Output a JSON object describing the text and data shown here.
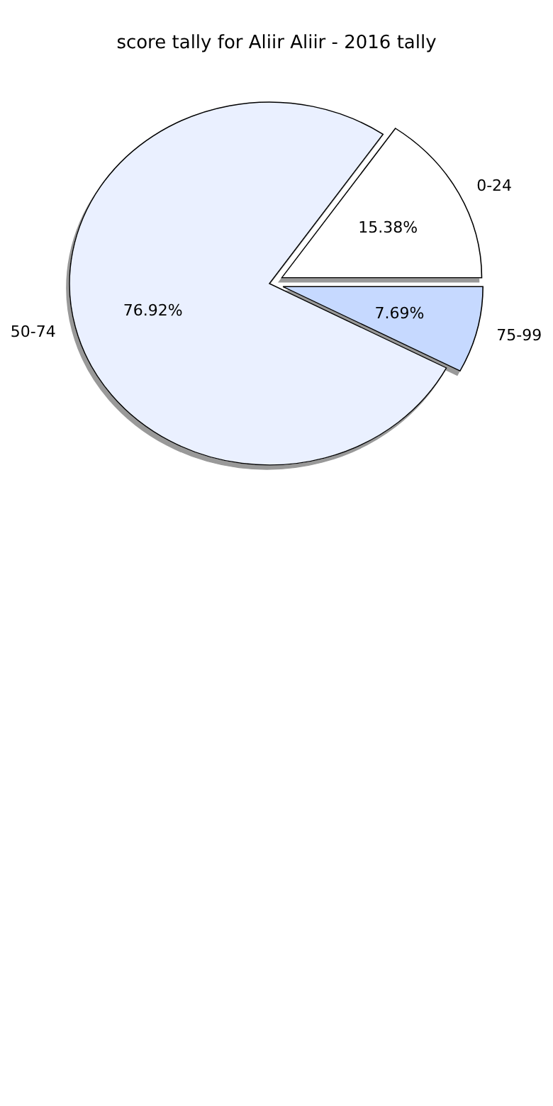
{
  "chart_data": {
    "type": "pie",
    "title": "score tally for Aliir Aliir - 2016 tally",
    "categories": [
      "0-24",
      "50-74",
      "75-99"
    ],
    "values": [
      15.38,
      76.92,
      7.69
    ],
    "colors": [
      "#ffffff",
      "#eaf0ff",
      "#c6d9ff"
    ],
    "value_labels": [
      "15.38%",
      "76.92%",
      "7.69%"
    ]
  }
}
